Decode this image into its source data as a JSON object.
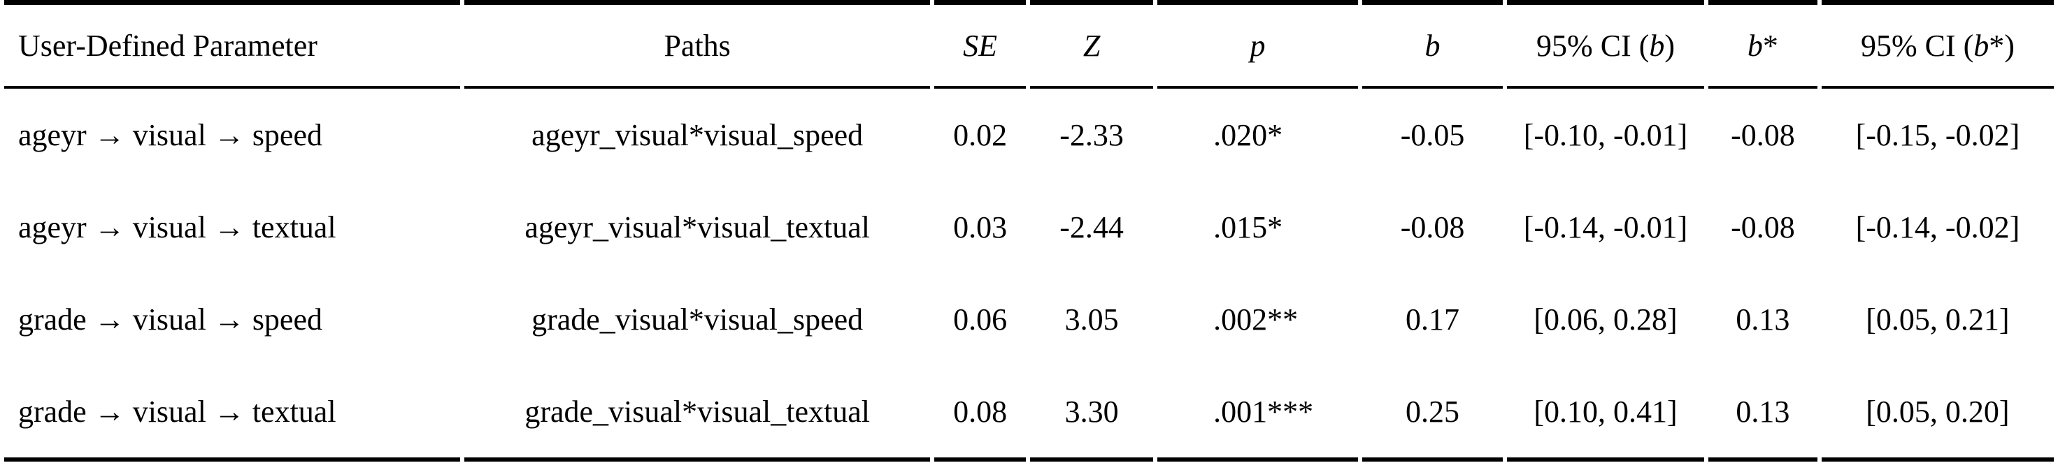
{
  "table": {
    "columns": [
      {
        "key": "param",
        "align": "left",
        "parts": [
          {
            "text": "User-Defined Parameter",
            "italic": false
          }
        ]
      },
      {
        "key": "paths",
        "align": "center",
        "parts": [
          {
            "text": "Paths",
            "italic": false
          }
        ]
      },
      {
        "key": "se",
        "align": "center",
        "parts": [
          {
            "text": "SE",
            "italic": true
          }
        ]
      },
      {
        "key": "z",
        "align": "center",
        "parts": [
          {
            "text": "Z",
            "italic": true
          }
        ]
      },
      {
        "key": "p",
        "align": "center",
        "parts": [
          {
            "text": "p",
            "italic": true
          }
        ]
      },
      {
        "key": "b",
        "align": "center",
        "parts": [
          {
            "text": "b",
            "italic": true
          }
        ]
      },
      {
        "key": "ci-b",
        "align": "center",
        "parts": [
          {
            "text": "95% CI (",
            "italic": false
          },
          {
            "text": "b",
            "italic": true
          },
          {
            "text": ")",
            "italic": false
          }
        ]
      },
      {
        "key": "b-star",
        "align": "center",
        "parts": [
          {
            "text": "b",
            "italic": true
          },
          {
            "text": "*",
            "italic": false
          }
        ]
      },
      {
        "key": "ci-b-star",
        "align": "center",
        "parts": [
          {
            "text": "95% CI (",
            "italic": false
          },
          {
            "text": "b",
            "italic": true
          },
          {
            "text": "*)",
            "italic": false
          }
        ]
      }
    ],
    "rows": [
      [
        "ageyr → visual → speed",
        "ageyr_visual*visual_speed",
        "0.02",
        "-2.33",
        ".020*",
        "-0.05",
        "[-0.10, -0.01]",
        "-0.08",
        "[-0.15, -0.02]"
      ],
      [
        "ageyr → visual → textual",
        "ageyr_visual*visual_textual",
        "0.03",
        "-2.44",
        ".015*",
        "-0.08",
        "[-0.14, -0.01]",
        "-0.08",
        "[-0.14, -0.02]"
      ],
      [
        "grade → visual → speed",
        "grade_visual*visual_speed",
        "0.06",
        "3.05",
        ".002**",
        "0.17",
        "[0.06, 0.28]",
        "0.13",
        "[0.05, 0.21]"
      ],
      [
        "grade → visual → textual",
        "grade_visual*visual_textual",
        "0.08",
        "3.30",
        ".001***",
        "0.25",
        "[0.10, 0.41]",
        "0.13",
        "[0.05, 0.20]"
      ]
    ],
    "rules": {
      "top_rule_color": "#000000",
      "header_rule_color": "#000000",
      "bottom_rule_color": "#000000"
    }
  }
}
